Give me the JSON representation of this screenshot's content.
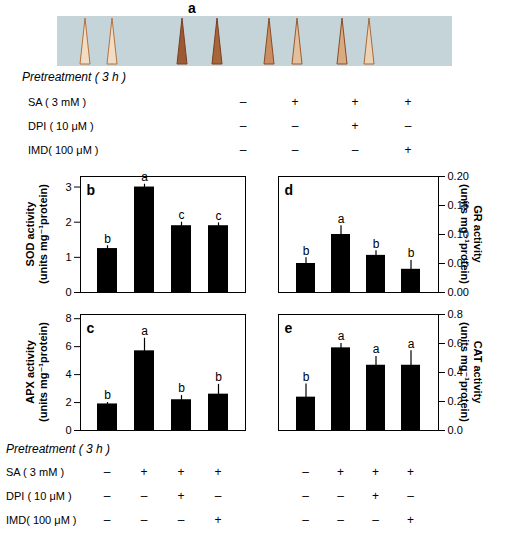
{
  "panel_a": {
    "title": "a"
  },
  "treatments": {
    "title": "Pretreatment ( 3 h )",
    "rows": [
      {
        "label": "SA ( 3 mM )",
        "signs": [
          "–",
          "+",
          "+",
          "+"
        ]
      },
      {
        "label": "DPI ( 10 μM )",
        "signs": [
          "–",
          "–",
          "+",
          "–"
        ]
      },
      {
        "label": "IMD( 100 μM )",
        "signs": [
          "–",
          "–",
          "–",
          "+"
        ]
      }
    ]
  },
  "chart_data": [
    {
      "type": "bar",
      "title": "b",
      "ylabel": "SOD activity (units mg⁻¹protein)",
      "categories": [
        null,
        null,
        null,
        null
      ],
      "values": [
        1.25,
        3.0,
        1.9,
        1.9
      ],
      "error": [
        0.08,
        0.08,
        0.1,
        0.08
      ],
      "letters": [
        "b",
        "a",
        "c",
        "c"
      ],
      "color": "#000000",
      "ylim": [
        0,
        3.3
      ],
      "yticks": [
        0,
        1,
        2,
        3
      ]
    },
    {
      "type": "bar",
      "title": "c",
      "ylabel": "APX activity (units mg⁻¹protein)",
      "categories": [
        null,
        null,
        null,
        null
      ],
      "values": [
        1.9,
        5.7,
        2.2,
        2.6
      ],
      "error": [
        0.1,
        0.9,
        0.3,
        0.7
      ],
      "letters": [
        "b",
        "a",
        "b",
        "b"
      ],
      "color": "#000000",
      "ylim": [
        0,
        8.3
      ],
      "yticks": [
        0,
        2,
        4,
        6,
        8
      ]
    },
    {
      "type": "bar",
      "title": "d",
      "y2label": "GR activity (units mg⁻¹protein)",
      "categories": [
        null,
        null,
        null,
        null
      ],
      "values": [
        0.05,
        0.1,
        0.064,
        0.04
      ],
      "error": [
        0.01,
        0.015,
        0.008,
        0.015
      ],
      "letters": [
        "b",
        "a",
        "b",
        "b"
      ],
      "color": "#000000",
      "y2lim": [
        0,
        0.2
      ],
      "y2ticks": [
        {
          "value": 0,
          "label": "0.00"
        },
        {
          "value": 0.05,
          "label": "0.05"
        },
        {
          "value": 0.1,
          "label": "0.10"
        },
        {
          "value": 0.15,
          "label": "0.15"
        },
        {
          "value": 0.2,
          "label": "0.20"
        }
      ]
    },
    {
      "type": "bar",
      "title": "e",
      "y2label": "CAT activity (units mg⁻¹protein)",
      "categories": [
        null,
        null,
        null,
        null
      ],
      "values": [
        0.23,
        0.57,
        0.45,
        0.45
      ],
      "error": [
        0.09,
        0.03,
        0.06,
        0.1
      ],
      "letters": [
        "b",
        "a",
        "a",
        "a"
      ],
      "color": "#000000",
      "y2lim": [
        0,
        0.8
      ],
      "y2ticks": [
        {
          "value": 0,
          "label": "0.0"
        },
        {
          "value": 0.2,
          "label": "0.2"
        },
        {
          "value": 0.4,
          "label": "0.4"
        },
        {
          "value": 0.6,
          "label": "0.6"
        },
        {
          "value": 0.8,
          "label": "0.8"
        }
      ]
    }
  ]
}
